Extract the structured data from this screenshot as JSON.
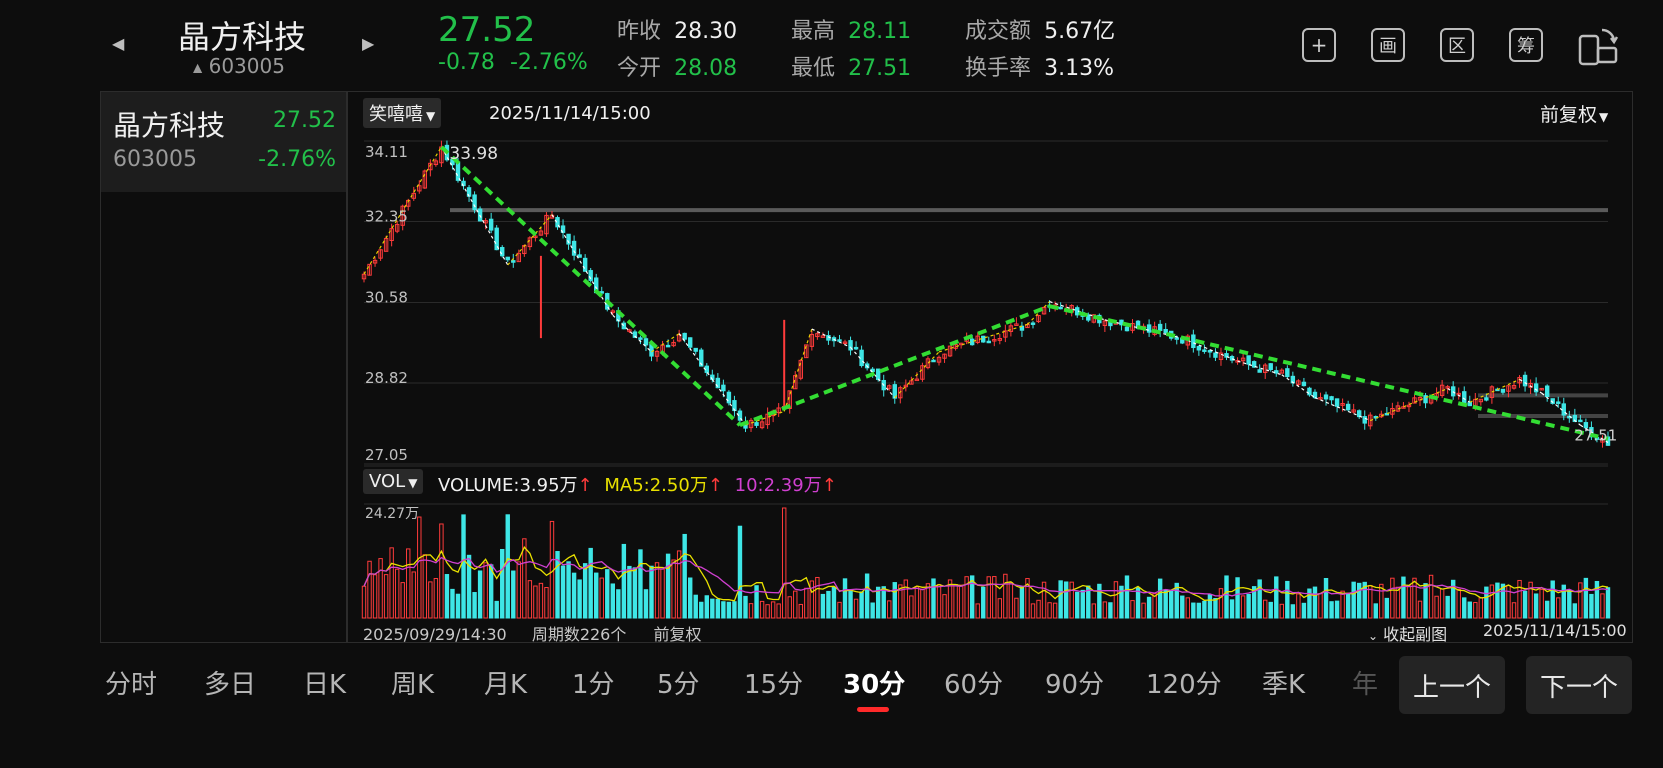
{
  "header": {
    "stock_name": "晶方科技",
    "stock_code": "603005",
    "price": "27.52",
    "change": "-0.78",
    "change_pct": "-2.76%",
    "prev_close_label": "昨收",
    "prev_close": "28.30",
    "open_label": "今开",
    "open": "28.08",
    "high_label": "最高",
    "high": "28.11",
    "low_label": "最低",
    "low": "27.51",
    "turnover_label": "成交额",
    "turnover": "5.67亿",
    "turnover_rate_label": "换手率",
    "turnover_rate": "3.13%",
    "icons": [
      "plus-box-icon",
      "draw-icon",
      "range-icon",
      "chip-icon",
      "rotate-screen-icon"
    ],
    "icon_glyphs": [
      "+",
      "画",
      "区",
      "筹",
      ""
    ]
  },
  "watchlist": [
    {
      "name": "晶方科技",
      "price": "27.52",
      "code": "603005",
      "change_pct": "-2.76%"
    }
  ],
  "chart_header": {
    "indicator_select": "笑嘻嘻",
    "datetime": "2025/11/14/15:00",
    "adjust_select": "前复权"
  },
  "volume_header": {
    "indicator_select": "VOL",
    "volume_label": "VOLUME:",
    "volume_value": "3.95万",
    "ma5_label": "MA5:",
    "ma5_value": "2.50万",
    "ma10_label": "10:",
    "ma10_value": "2.39万",
    "arrow": "↑"
  },
  "footer": {
    "start_datetime": "2025/09/29/14:30",
    "period_count": "周期数226个",
    "adjust": "前复权",
    "collapse": "收起副图",
    "end_datetime": "2025/11/14/15:00"
  },
  "bottom_tabs": [
    "分时",
    "多日",
    "日K",
    "周K",
    "月K",
    "1分",
    "5分",
    "15分",
    "30分",
    "60分",
    "90分",
    "120分",
    "季K",
    "年"
  ],
  "active_tab": "30分",
  "prev_button": "上一个",
  "next_button": "下一个",
  "colors": {
    "up": "#ff3b3b",
    "down": "#3ee6e6",
    "price_green": "#22c04a",
    "ma5": "#e8e000",
    "ma10": "#d040d0",
    "trend": "#33dd33"
  },
  "chart_data": {
    "type": "candlestick",
    "price_axis_ticks": [
      "34.11",
      "32.35",
      "30.58",
      "28.82",
      "27.05"
    ],
    "ylim": [
      27.05,
      34.11
    ],
    "max_label": "33.98",
    "last_label": "27.51",
    "volume_max_label": "24.27万",
    "periods": 226,
    "key_points": [
      {
        "i": 0,
        "p": 31.2
      },
      {
        "i": 14,
        "p": 33.98
      },
      {
        "i": 26,
        "p": 31.4
      },
      {
        "i": 34,
        "p": 32.5
      },
      {
        "i": 45,
        "p": 30.3
      },
      {
        "i": 52,
        "p": 29.5
      },
      {
        "i": 57,
        "p": 29.9
      },
      {
        "i": 63,
        "p": 28.9
      },
      {
        "i": 69,
        "p": 27.9
      },
      {
        "i": 76,
        "p": 28.2
      },
      {
        "i": 81,
        "p": 30.0
      },
      {
        "i": 88,
        "p": 29.6
      },
      {
        "i": 96,
        "p": 28.5
      },
      {
        "i": 104,
        "p": 29.5
      },
      {
        "i": 120,
        "p": 30.1
      },
      {
        "i": 124,
        "p": 30.6
      },
      {
        "i": 134,
        "p": 30.2
      },
      {
        "i": 148,
        "p": 29.8
      },
      {
        "i": 158,
        "p": 29.3
      },
      {
        "i": 166,
        "p": 29.0
      },
      {
        "i": 172,
        "p": 28.5
      },
      {
        "i": 182,
        "p": 28.0
      },
      {
        "i": 196,
        "p": 28.7
      },
      {
        "i": 200,
        "p": 28.4
      },
      {
        "i": 209,
        "p": 28.9
      },
      {
        "i": 213,
        "p": 28.6
      },
      {
        "i": 220,
        "p": 27.9
      },
      {
        "i": 225,
        "p": 27.52
      }
    ],
    "trend_lines": [
      {
        "from": [
          14,
          33.98
        ],
        "to": [
          68,
          27.9
        ]
      },
      {
        "from": [
          68,
          27.9
        ],
        "to": [
          124,
          30.5
        ]
      },
      {
        "from": [
          124,
          30.5
        ],
        "to": [
          225,
          27.6
        ]
      }
    ],
    "resistance_lines": [
      32.6,
      28.55,
      28.1
    ]
  }
}
